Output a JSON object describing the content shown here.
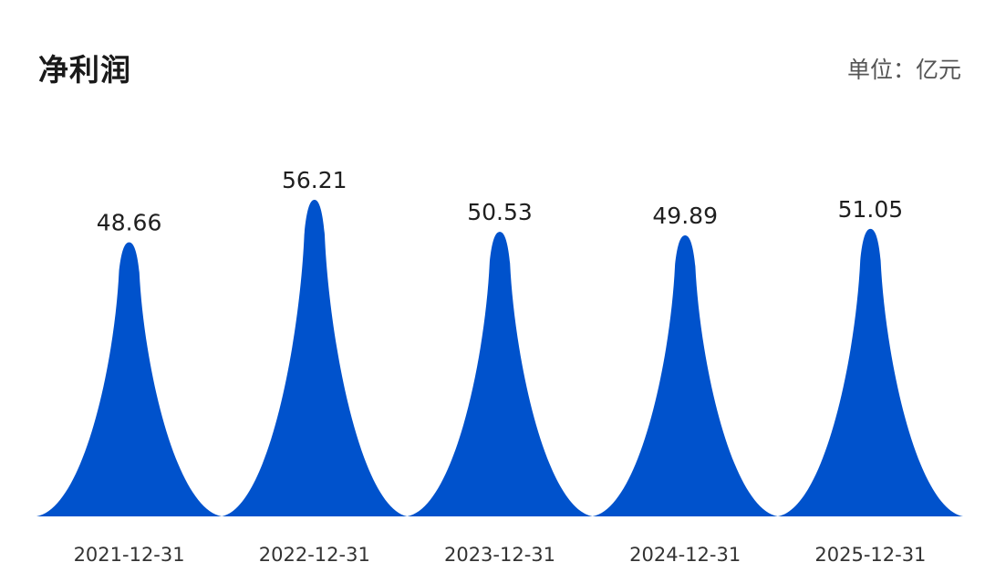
{
  "header": {
    "title": "净利润",
    "unit": "单位：亿元"
  },
  "chart_data": {
    "type": "bar",
    "title": "净利润",
    "unit": "单位：亿元",
    "categories": [
      "2021-12-31",
      "2022-12-31",
      "2023-12-31",
      "2024-12-31",
      "2025-12-31"
    ],
    "values": [
      48.66,
      56.21,
      50.53,
      49.89,
      51.05
    ],
    "value_labels": [
      "48.66",
      "56.21",
      "50.53",
      "49.89",
      "51.05"
    ],
    "grid": false,
    "legend": "none",
    "color": "#0052CC"
  }
}
